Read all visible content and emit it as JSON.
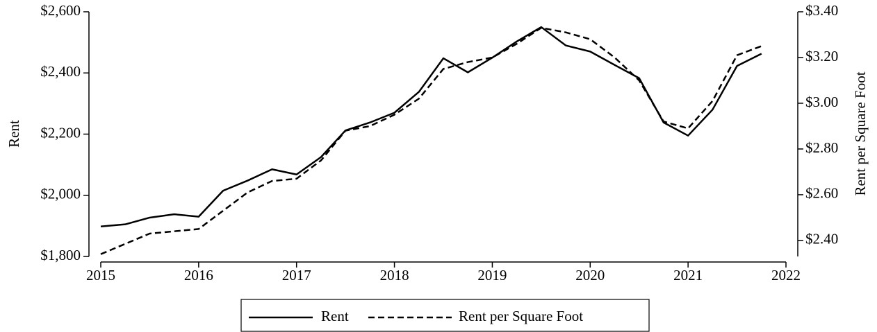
{
  "chart_data": {
    "type": "line",
    "x": [
      2015,
      2015.25,
      2015.5,
      2015.75,
      2016,
      2016.25,
      2016.5,
      2016.75,
      2017,
      2017.25,
      2017.5,
      2017.75,
      2018,
      2018.25,
      2018.5,
      2018.75,
      2019,
      2019.25,
      2019.5,
      2019.75,
      2020,
      2020.25,
      2020.5,
      2020.75,
      2021,
      2021.25,
      2021.5,
      2021.75
    ],
    "xlim": [
      2015,
      2022
    ],
    "xticks": [
      2015,
      2016,
      2017,
      2018,
      2019,
      2020,
      2021,
      2022
    ],
    "y_label": "Rent",
    "y2_label": "Rent per Square Foot",
    "ylim": [
      1800,
      2600
    ],
    "yticks": [
      {
        "value": 1800,
        "label": "$1,800"
      },
      {
        "value": 2000,
        "label": "$2,000"
      },
      {
        "value": 2200,
        "label": "$2,200"
      },
      {
        "value": 2400,
        "label": "$2,400"
      },
      {
        "value": 2600,
        "label": "$2,600"
      }
    ],
    "y2lim": [
      2.33,
      3.4
    ],
    "y2ticks": [
      {
        "value": 2.4,
        "label": "$2.40"
      },
      {
        "value": 2.6,
        "label": "$2.60"
      },
      {
        "value": 2.8,
        "label": "$2.80"
      },
      {
        "value": 3.0,
        "label": "$3.00"
      },
      {
        "value": 3.2,
        "label": "$3.20"
      },
      {
        "value": 3.4,
        "label": "$3.40"
      }
    ],
    "series": [
      {
        "name": "Rent",
        "color": "#000000",
        "dashed": false,
        "values": [
          1898,
          1905,
          1927,
          1938,
          1930,
          2015,
          2048,
          2085,
          2068,
          2125,
          2212,
          2238,
          2270,
          2338,
          2448,
          2402,
          2450,
          2503,
          2550,
          2490,
          2470,
          2426,
          2383,
          2238,
          2195,
          2280,
          2423,
          2463
        ]
      },
      {
        "name": "Rent per Square Foot",
        "color": "#000000",
        "dashed": true,
        "axis": "y2",
        "values": [
          2.34,
          2.385,
          2.43,
          2.44,
          2.45,
          2.53,
          2.61,
          2.66,
          2.67,
          2.75,
          2.88,
          2.9,
          2.95,
          3.02,
          3.15,
          3.18,
          3.2,
          3.26,
          3.33,
          3.31,
          3.28,
          3.2,
          3.1,
          2.92,
          2.89,
          3.01,
          3.21,
          3.25
        ]
      }
    ]
  }
}
